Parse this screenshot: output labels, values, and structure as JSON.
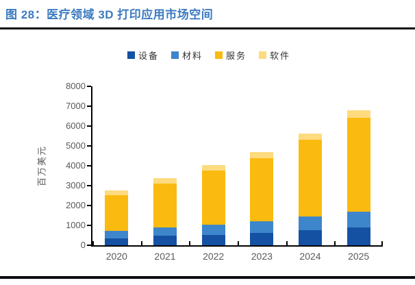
{
  "figure": {
    "title": "图 28：医疗领域 3D 打印应用市场空间",
    "title_color": "#3B7AC0",
    "rule_color": "#0B0B12"
  },
  "chart_data": {
    "type": "bar",
    "stacked": true,
    "categories": [
      "2020",
      "2021",
      "2022",
      "2023",
      "2024",
      "2025"
    ],
    "series": [
      {
        "name": "设备",
        "color": "#1451A3",
        "values": [
          360,
          480,
          530,
          620,
          750,
          885
        ]
      },
      {
        "name": "材料",
        "color": "#3E86CB",
        "values": [
          380,
          420,
          520,
          600,
          710,
          815
        ]
      },
      {
        "name": "服务",
        "color": "#FBBA0F",
        "values": [
          1780,
          2190,
          2700,
          3160,
          3850,
          4730
        ]
      },
      {
        "name": "软件",
        "color": "#FDDB7E",
        "values": [
          230,
          290,
          290,
          320,
          320,
          370
        ]
      }
    ],
    "totals": [
      2750,
      3380,
      4040,
      4700,
      5630,
      6800
    ],
    "ylabel": "百万美元",
    "ylim": [
      0,
      8000
    ],
    "ytick_step": 1000,
    "ytick_labels": [
      "0",
      "1000",
      "2000",
      "3000",
      "4000",
      "5000",
      "6000",
      "7000",
      "8000"
    ],
    "legend_position": "top-center",
    "grid": false,
    "axis_color": "#000000",
    "tick_label_color": "#595959"
  }
}
